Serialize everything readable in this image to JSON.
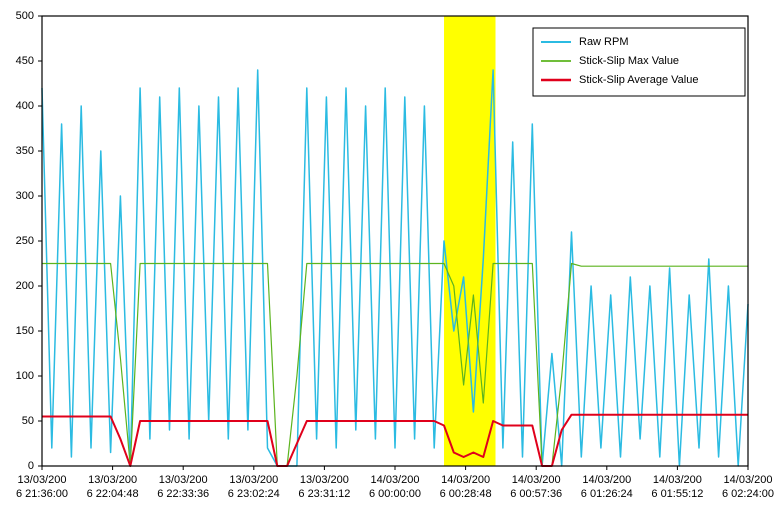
{
  "chart_data": {
    "type": "line",
    "x": [
      "13/03/2006 21:36:00",
      "13/03/2006 21:40:00",
      "13/03/2006 21:44:00",
      "13/03/2006 21:48:00",
      "13/03/2006 21:52:00",
      "13/03/2006 21:56:00",
      "13/03/2006 22:00:00",
      "13/03/2006 22:04:00",
      "13/03/2006 22:08:00",
      "13/03/2006 22:12:00",
      "13/03/2006 22:16:00",
      "13/03/2006 22:20:00",
      "13/03/2006 22:24:00",
      "13/03/2006 22:28:00",
      "13/03/2006 22:32:00",
      "13/03/2006 22:36:00",
      "13/03/2006 22:40:00",
      "13/03/2006 22:44:00",
      "13/03/2006 22:48:00",
      "13/03/2006 22:52:00",
      "13/03/2006 22:56:00",
      "13/03/2006 23:00:00",
      "13/03/2006 23:04:00",
      "13/03/2006 23:08:00",
      "13/03/2006 23:12:00",
      "13/03/2006 23:16:00",
      "13/03/2006 23:20:00",
      "13/03/2006 23:24:00",
      "13/03/2006 23:28:00",
      "13/03/2006 23:32:00",
      "13/03/2006 23:36:00",
      "13/03/2006 23:40:00",
      "13/03/2006 23:44:00",
      "13/03/2006 23:48:00",
      "13/03/2006 23:52:00",
      "13/03/2006 23:56:00",
      "14/03/2006 00:00:00",
      "14/03/2006 00:04:00",
      "14/03/2006 00:08:00",
      "14/03/2006 00:12:00",
      "14/03/2006 00:16:00",
      "14/03/2006 00:20:00",
      "14/03/2006 00:24:00",
      "14/03/2006 00:28:00",
      "14/03/2006 00:32:00",
      "14/03/2006 00:36:00",
      "14/03/2006 00:40:00",
      "14/03/2006 00:44:00",
      "14/03/2006 00:48:00",
      "14/03/2006 00:52:00",
      "14/03/2006 00:56:00",
      "14/03/2006 01:00:00",
      "14/03/2006 01:04:00",
      "14/03/2006 01:08:00",
      "14/03/2006 01:12:00",
      "14/03/2006 01:16:00",
      "14/03/2006 01:20:00",
      "14/03/2006 01:24:00",
      "14/03/2006 01:28:00",
      "14/03/2006 01:32:00",
      "14/03/2006 01:36:00",
      "14/03/2006 01:40:00",
      "14/03/2006 01:44:00",
      "14/03/2006 01:48:00",
      "14/03/2006 01:52:00",
      "14/03/2006 01:56:00",
      "14/03/2006 02:00:00",
      "14/03/2006 02:04:00",
      "14/03/2006 02:08:00",
      "14/03/2006 02:12:00",
      "14/03/2006 02:16:00",
      "14/03/2006 02:20:00",
      "14/03/2006 02:24:00"
    ],
    "series": [
      {
        "name": "Raw RPM",
        "color": "#2bbbe2",
        "width": 1.5,
        "values": [
          420,
          20,
          380,
          10,
          400,
          20,
          350,
          15,
          300,
          0,
          420,
          30,
          410,
          40,
          420,
          30,
          400,
          50,
          410,
          30,
          420,
          40,
          440,
          20,
          0,
          0,
          0,
          420,
          30,
          410,
          20,
          420,
          40,
          400,
          30,
          420,
          20,
          410,
          30,
          400,
          20,
          250,
          150,
          210,
          60,
          230,
          440,
          20,
          360,
          10,
          380,
          0,
          125,
          0,
          260,
          10,
          200,
          20,
          190,
          10,
          210,
          30,
          200,
          10,
          220,
          0,
          190,
          20,
          230,
          10,
          200,
          0,
          180
        ]
      },
      {
        "name": "Stick-Slip Max Value",
        "color": "#5cb41e",
        "width": 1.2,
        "values": [
          225,
          225,
          225,
          225,
          225,
          225,
          225,
          225,
          120,
          0,
          225,
          225,
          225,
          225,
          225,
          225,
          225,
          225,
          225,
          225,
          225,
          225,
          225,
          225,
          0,
          0,
          100,
          225,
          225,
          225,
          225,
          225,
          225,
          225,
          225,
          225,
          225,
          225,
          225,
          225,
          225,
          225,
          200,
          90,
          190,
          70,
          225,
          225,
          225,
          225,
          225,
          0,
          0,
          100,
          225,
          222,
          222,
          222,
          222,
          222,
          222,
          222,
          222,
          222,
          222,
          222,
          222,
          222,
          222,
          222,
          222,
          222,
          222
        ]
      },
      {
        "name": "Stick-Slip Average Value",
        "color": "#e0001b",
        "width": 2,
        "values": [
          55,
          55,
          55,
          55,
          55,
          55,
          55,
          55,
          30,
          0,
          50,
          50,
          50,
          50,
          50,
          50,
          50,
          50,
          50,
          50,
          50,
          50,
          50,
          50,
          0,
          0,
          25,
          50,
          50,
          50,
          50,
          50,
          50,
          50,
          50,
          50,
          50,
          50,
          50,
          50,
          50,
          45,
          15,
          10,
          15,
          10,
          50,
          45,
          45,
          45,
          45,
          0,
          0,
          40,
          57,
          57,
          57,
          57,
          57,
          57,
          57,
          57,
          57,
          57,
          57,
          57,
          57,
          57,
          57,
          57,
          57,
          57,
          57
        ]
      }
    ],
    "highlight": {
      "from": "14/03/2006 00:20:00",
      "to": "14/03/2006 00:41:00",
      "color": "#ffff00"
    },
    "xlim": [
      "13/03/2006 21:36:00",
      "14/03/2006 02:24:00"
    ],
    "xticks": [
      "13/03/2006 21:36:00",
      "13/03/2006 22:04:48",
      "13/03/2006 22:33:36",
      "13/03/2006 23:02:24",
      "13/03/2006 23:31:12",
      "14/03/2006 00:00:00",
      "14/03/2006 00:28:48",
      "14/03/2006 00:57:36",
      "14/03/2006 01:26:24",
      "14/03/2006 01:55:12",
      "14/03/2006 02:24:00"
    ],
    "ylim": [
      0,
      500
    ],
    "yticks": [
      0,
      50,
      100,
      150,
      200,
      250,
      300,
      350,
      400,
      450,
      500
    ],
    "grid": false,
    "legend": "top-right"
  }
}
